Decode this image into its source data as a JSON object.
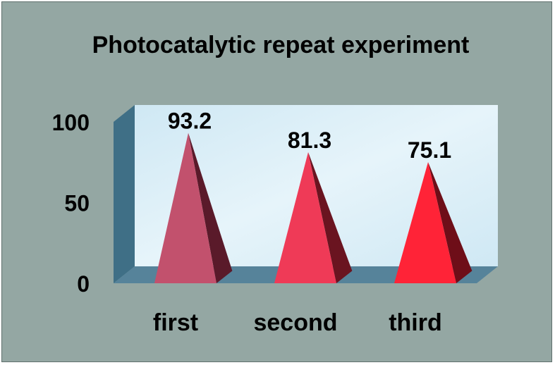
{
  "chart_data": {
    "type": "bar",
    "bar_shape": "pyramid",
    "title": "Photocatalytic repeat experiment",
    "categories": [
      "first",
      "second",
      "third"
    ],
    "values": [
      93.2,
      81.3,
      75.1
    ],
    "value_labels": [
      "93.2",
      "81.3",
      "75.1"
    ],
    "ylim": [
      0,
      100
    ],
    "yticks": [
      "0",
      "50",
      "100"
    ],
    "grid": false,
    "legend": false
  },
  "colors": {
    "background": "#94a7a3",
    "wall": "#cfe8f4",
    "wall_shade": "#e6f4fa",
    "side_wall": "#3f6f86",
    "floor": "#56839a",
    "bar_fronts": [
      "#c2516d",
      "#ef3a57",
      "#ff2337"
    ],
    "bar_sides": [
      "#5a1a2a",
      "#6a1420",
      "#6e0e18"
    ]
  }
}
